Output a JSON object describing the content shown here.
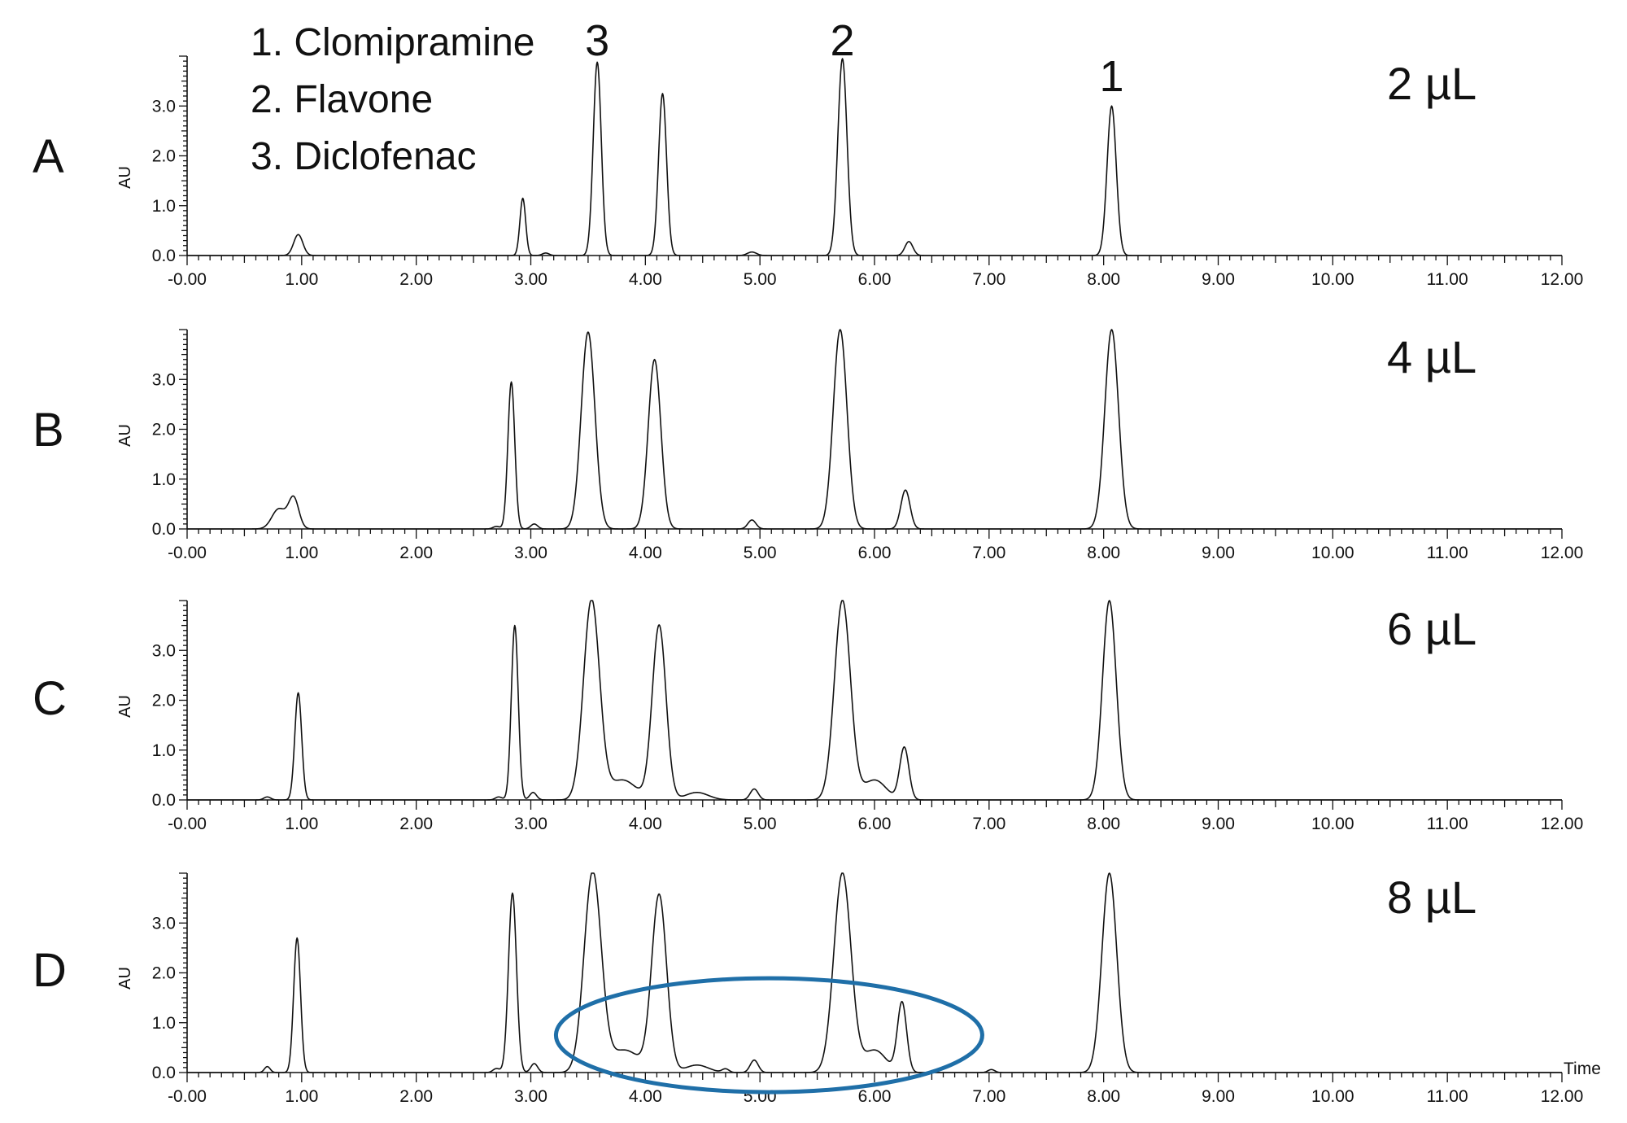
{
  "chart_data": [
    {
      "type": "line",
      "panel": "A",
      "annotation": "2 µL",
      "ylabel": "AU",
      "xlabel": "",
      "xlim": [
        0,
        12
      ],
      "ylim": [
        0,
        4
      ],
      "x_ticks": [
        "-0.00",
        "1.00",
        "2.00",
        "3.00",
        "4.00",
        "5.00",
        "6.00",
        "7.00",
        "8.00",
        "9.00",
        "10.00",
        "11.00",
        "12.00"
      ],
      "y_ticks": [
        "0.0",
        "1.0",
        "2.0",
        "3.0"
      ],
      "peaks": [
        {
          "t": 0.97,
          "h": 0.42,
          "w": 0.04
        },
        {
          "t": 2.93,
          "h": 1.15,
          "w": 0.025
        },
        {
          "t": 3.13,
          "h": 0.05,
          "w": 0.03
        },
        {
          "t": 3.58,
          "h": 3.88,
          "w": 0.035
        },
        {
          "t": 4.15,
          "h": 3.25,
          "w": 0.035
        },
        {
          "t": 4.93,
          "h": 0.07,
          "w": 0.04
        },
        {
          "t": 5.72,
          "h": 3.95,
          "w": 0.04
        },
        {
          "t": 6.3,
          "h": 0.28,
          "w": 0.035
        },
        {
          "t": 8.07,
          "h": 3.0,
          "w": 0.04
        }
      ]
    },
    {
      "type": "line",
      "panel": "B",
      "annotation": "4 µL",
      "ylabel": "AU",
      "xlabel": "",
      "xlim": [
        0,
        12
      ],
      "ylim": [
        0,
        4
      ],
      "x_ticks": [
        "-0.00",
        "1.00",
        "2.00",
        "3.00",
        "4.00",
        "5.00",
        "6.00",
        "7.00",
        "8.00",
        "9.00",
        "10.00",
        "11.00",
        "12.00"
      ],
      "y_ticks": [
        "0.0",
        "1.0",
        "2.0",
        "3.0"
      ],
      "peaks": [
        {
          "t": 0.8,
          "h": 0.4,
          "w": 0.06
        },
        {
          "t": 0.93,
          "h": 0.62,
          "w": 0.045
        },
        {
          "t": 2.7,
          "h": 0.05,
          "w": 0.03
        },
        {
          "t": 2.83,
          "h": 2.95,
          "w": 0.03
        },
        {
          "t": 3.03,
          "h": 0.1,
          "w": 0.03
        },
        {
          "t": 3.5,
          "h": 3.95,
          "w": 0.06
        },
        {
          "t": 4.08,
          "h": 3.4,
          "w": 0.055
        },
        {
          "t": 4.93,
          "h": 0.18,
          "w": 0.035
        },
        {
          "t": 5.7,
          "h": 4.0,
          "w": 0.06
        },
        {
          "t": 6.27,
          "h": 0.78,
          "w": 0.04
        },
        {
          "t": 8.07,
          "h": 4.0,
          "w": 0.06
        }
      ]
    },
    {
      "type": "line",
      "panel": "C",
      "annotation": "6 µL",
      "ylabel": "AU",
      "xlabel": "",
      "xlim": [
        0,
        12
      ],
      "ylim": [
        0,
        4
      ],
      "x_ticks": [
        "-0.00",
        "1.00",
        "2.00",
        "3.00",
        "4.00",
        "5.00",
        "6.00",
        "7.00",
        "8.00",
        "9.00",
        "10.00",
        "11.00",
        "12.00"
      ],
      "y_ticks": [
        "0.0",
        "1.0",
        "2.0",
        "3.0"
      ],
      "peaks": [
        {
          "t": 0.7,
          "h": 0.06,
          "w": 0.03
        },
        {
          "t": 0.97,
          "h": 2.15,
          "w": 0.03
        },
        {
          "t": 2.72,
          "h": 0.06,
          "w": 0.03
        },
        {
          "t": 2.86,
          "h": 3.5,
          "w": 0.03
        },
        {
          "t": 3.02,
          "h": 0.15,
          "w": 0.03
        },
        {
          "t": 3.53,
          "h": 4.0,
          "w": 0.07
        },
        {
          "t": 3.8,
          "h": 0.4,
          "w": 0.12
        },
        {
          "t": 4.12,
          "h": 3.5,
          "w": 0.06
        },
        {
          "t": 4.45,
          "h": 0.15,
          "w": 0.1
        },
        {
          "t": 4.95,
          "h": 0.22,
          "w": 0.035
        },
        {
          "t": 5.72,
          "h": 4.0,
          "w": 0.07
        },
        {
          "t": 6.0,
          "h": 0.4,
          "w": 0.1
        },
        {
          "t": 6.26,
          "h": 1.05,
          "w": 0.04
        },
        {
          "t": 8.05,
          "h": 4.0,
          "w": 0.06
        }
      ]
    },
    {
      "type": "line",
      "panel": "D",
      "annotation": "8 µL",
      "ylabel": "AU",
      "xlabel": "Time",
      "xlim": [
        0,
        12
      ],
      "ylim": [
        0,
        4
      ],
      "x_ticks": [
        "-0.00",
        "1.00",
        "2.00",
        "3.00",
        "4.00",
        "5.00",
        "6.00",
        "7.00",
        "8.00",
        "9.00",
        "10.00",
        "11.00",
        "12.00"
      ],
      "y_ticks": [
        "0.0",
        "1.0",
        "2.0",
        "3.0"
      ],
      "peaks": [
        {
          "t": 0.7,
          "h": 0.12,
          "w": 0.025
        },
        {
          "t": 0.96,
          "h": 2.7,
          "w": 0.03
        },
        {
          "t": 2.7,
          "h": 0.08,
          "w": 0.03
        },
        {
          "t": 2.84,
          "h": 3.6,
          "w": 0.035
        },
        {
          "t": 3.03,
          "h": 0.18,
          "w": 0.03
        },
        {
          "t": 3.54,
          "h": 4.0,
          "w": 0.075
        },
        {
          "t": 3.82,
          "h": 0.45,
          "w": 0.13
        },
        {
          "t": 4.12,
          "h": 3.55,
          "w": 0.065
        },
        {
          "t": 4.45,
          "h": 0.15,
          "w": 0.1
        },
        {
          "t": 4.7,
          "h": 0.07,
          "w": 0.03
        },
        {
          "t": 4.95,
          "h": 0.25,
          "w": 0.035
        },
        {
          "t": 5.72,
          "h": 4.0,
          "w": 0.075
        },
        {
          "t": 6.0,
          "h": 0.45,
          "w": 0.1
        },
        {
          "t": 6.24,
          "h": 1.4,
          "w": 0.04
        },
        {
          "t": 7.02,
          "h": 0.06,
          "w": 0.03
        },
        {
          "t": 8.05,
          "h": 4.0,
          "w": 0.065
        }
      ]
    }
  ],
  "legend": {
    "items": [
      "1. Clomipramine",
      "2. Flavone",
      "3. Diclofenac"
    ]
  },
  "peak_labels": [
    {
      "text": "1",
      "t": 8.07
    },
    {
      "text": "2",
      "t": 5.72
    },
    {
      "text": "3",
      "t": 3.58
    }
  ],
  "highlight": {
    "panel": "D",
    "shape": "ellipse",
    "center_t": 5.08,
    "center_au": 0.75,
    "color": "#1f6fa8"
  }
}
